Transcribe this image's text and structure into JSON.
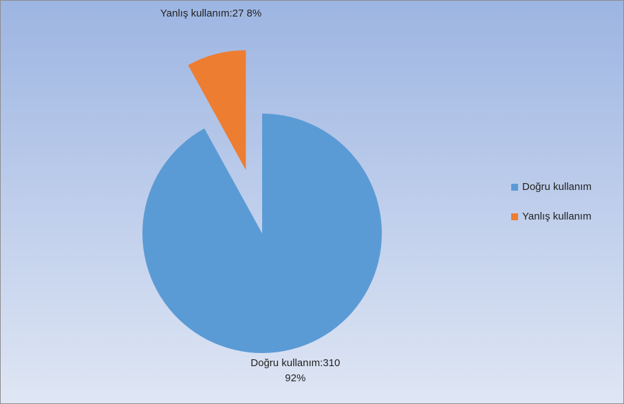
{
  "chart_data": {
    "type": "pie",
    "categories": [
      "Doğru kullanım",
      "Yanlış kullanım"
    ],
    "values": [
      310,
      27
    ],
    "value_labels": [
      "Doğru kullanım:310",
      "Yanlış kullanım:27"
    ],
    "percent_labels": [
      "92%",
      "8%"
    ],
    "colors": [
      "#5b9bd5",
      "#ed7d31"
    ],
    "exploded": [
      false,
      true
    ],
    "legend": "right"
  }
}
